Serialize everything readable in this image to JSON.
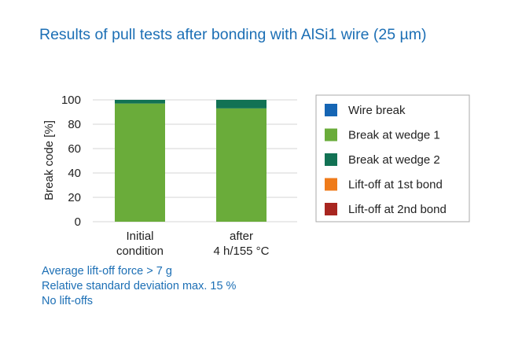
{
  "chart_data": {
    "type": "bar",
    "stacked": true,
    "title": "Results of pull tests after bonding with AlSi1 wire (25 µm)",
    "ylabel": "Break code [%]",
    "xlabel": "",
    "ylim": [
      0,
      100
    ],
    "yticks": [
      0,
      20,
      40,
      60,
      80,
      100
    ],
    "grid": true,
    "legend_position": "right",
    "categories": [
      [
        "Initial",
        "condition"
      ],
      [
        "after",
        "4 h/155 °C"
      ]
    ],
    "series": [
      {
        "name": "Wire break",
        "color": "#1565b4",
        "values": [
          0,
          0
        ]
      },
      {
        "name": "Break at wedge 1",
        "color": "#6aac3a",
        "values": [
          97,
          93
        ]
      },
      {
        "name": "Break at wedge 2",
        "color": "#127254",
        "values": [
          3,
          7
        ]
      },
      {
        "name": "Lift-off at 1st bond",
        "color": "#ef7b1a",
        "values": [
          0,
          0
        ]
      },
      {
        "name": "Lift-off at 2nd bond",
        "color": "#a82620",
        "values": [
          0,
          0
        ]
      }
    ]
  },
  "notes": [
    "Average lift-off force > 7 g",
    "Relative standard deviation max. 15 %",
    "No lift-offs"
  ],
  "colors": {
    "title_text": "#1c6fb5",
    "gridline": "#d6d6d6",
    "legend_border": "#aaaaaa"
  }
}
